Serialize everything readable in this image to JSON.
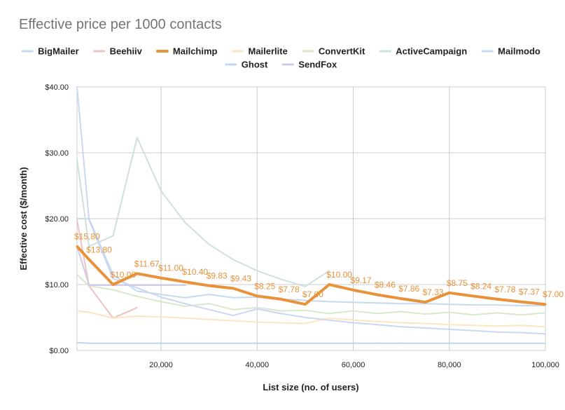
{
  "chart_data": {
    "type": "line",
    "title": "Effective price per 1000 contacts",
    "xlabel": "List size (no. of users)",
    "ylabel": "Effective cost ($/month)",
    "xlim": [
      2500,
      100000
    ],
    "ylim": [
      0,
      40
    ],
    "grid": true,
    "legend_position": "top",
    "x_ticks": [
      20000,
      40000,
      60000,
      80000,
      100000
    ],
    "x_tick_labels": [
      "20,000",
      "40,000",
      "60,000",
      "80,000",
      "100,000"
    ],
    "y_ticks": [
      0,
      10,
      20,
      30,
      40
    ],
    "y_tick_labels": [
      "$0.00",
      "$10.00",
      "$20.00",
      "$30.00",
      "$40.00"
    ],
    "highlight_series": "Mailchimp",
    "series": [
      {
        "name": "BigMailer",
        "color": "#c5d9ef",
        "x": [
          2500,
          5000,
          10000,
          15000,
          20000,
          25000,
          30000,
          35000,
          40000,
          45000,
          50000,
          55000,
          60000,
          65000,
          70000,
          75000,
          80000,
          85000,
          90000,
          95000,
          100000
        ],
        "y": [
          20,
          20,
          11.5,
          9,
          8.5,
          8,
          8.5,
          8,
          8.1,
          7.8,
          7.6,
          7.4,
          7.3,
          7.2,
          7.1,
          7.1,
          7,
          6.9,
          6.9,
          6.8,
          6.8
        ]
      },
      {
        "name": "Beehiiv",
        "color": "#efc3c3",
        "x": [
          2500,
          5000,
          10000,
          15000
        ],
        "y": [
          19.8,
          9.8,
          4.9,
          6.5
        ]
      },
      {
        "name": "Mailchimp",
        "color": "#e8923a",
        "x": [
          2500,
          5000,
          10000,
          15000,
          20000,
          25000,
          30000,
          35000,
          40000,
          45000,
          50000,
          55000,
          60000,
          65000,
          70000,
          75000,
          80000,
          85000,
          90000,
          95000,
          100000
        ],
        "y": [
          15.8,
          13.8,
          10,
          11.67,
          11,
          10.4,
          9.83,
          9.43,
          8.25,
          7.78,
          7,
          10,
          9.17,
          8.46,
          7.86,
          7.33,
          8.75,
          8.24,
          7.78,
          7.37,
          7
        ],
        "labels": [
          "$15.80",
          "$13.80",
          "$10.00",
          "$11.67",
          "$11.00",
          "$10.40",
          "$9.83",
          "$9.43",
          "$8.25",
          "$7.78",
          "$7.00",
          "$10.00",
          "$9.17",
          "$8.46",
          "$7.86",
          "$7.33",
          "$8.75",
          "$8.24",
          "$7.78",
          "$7.37",
          "$7.00"
        ]
      },
      {
        "name": "Mailerlite",
        "color": "#fbe6c2",
        "x": [
          2500,
          5000,
          10000,
          15000,
          20000,
          25000,
          30000,
          35000,
          40000,
          45000,
          50000,
          55000,
          60000,
          65000,
          70000,
          75000,
          80000,
          85000,
          90000,
          95000,
          100000
        ],
        "y": [
          6,
          5.8,
          4.9,
          5.2,
          5.1,
          4.9,
          4.7,
          4.5,
          4.3,
          4.2,
          4.1,
          4.9,
          4.6,
          4.4,
          4.2,
          4.1,
          3.9,
          3.8,
          3.7,
          3.8,
          3.6
        ]
      },
      {
        "name": "ConvertKit",
        "color": "#d7e8cc",
        "x": [
          2500,
          5000,
          10000,
          15000,
          20000,
          25000,
          30000,
          35000,
          40000,
          45000,
          50000,
          55000,
          60000,
          65000,
          70000,
          75000,
          80000,
          85000,
          90000,
          95000,
          100000
        ],
        "y": [
          11.5,
          9.8,
          9.2,
          8.2,
          7.4,
          6.7,
          7.1,
          6.2,
          6.5,
          6,
          6.1,
          5.6,
          6,
          5.6,
          5.9,
          5.5,
          5.8,
          5.4,
          5.7,
          5.4,
          5.7
        ]
      },
      {
        "name": "ActiveCampaign",
        "color": "#cfe0e0",
        "x": [
          2500,
          5000,
          10000,
          15000,
          20000,
          25000,
          30000,
          35000,
          40000,
          45000,
          50000,
          55000
        ],
        "y": [
          29,
          15.8,
          17.4,
          32.3,
          24.2,
          19.4,
          16.1,
          13.8,
          12.1,
          10.8,
          9.7,
          12.1
        ]
      },
      {
        "name": "Mailmodo",
        "color": "#c9d7f2",
        "x": [
          2500,
          5000,
          10000,
          15000,
          20000,
          25000,
          30000,
          35000,
          40000,
          45000,
          50000,
          55000,
          60000,
          65000,
          70000,
          75000,
          80000,
          85000,
          90000,
          95000,
          100000
        ],
        "y": [
          40,
          19.8,
          10.9,
          9.5,
          8.1,
          7.1,
          6.2,
          5.3,
          6.3,
          5.6,
          5,
          4.6,
          4.2,
          3.9,
          3.6,
          3.4,
          3.2,
          3,
          2.8,
          2.7,
          2.5
        ]
      },
      {
        "name": "Ghost",
        "color": "#bcd8ee",
        "x": [
          2500,
          5000,
          10000,
          15000,
          20000,
          25000,
          30000,
          35000,
          40000,
          45000,
          50000,
          55000,
          60000,
          65000,
          70000,
          75000,
          80000,
          85000,
          90000,
          95000,
          100000
        ],
        "y": [
          1.2,
          1.1,
          1.1,
          1.1,
          1.1,
          1.1,
          1.1,
          1.1,
          1.1,
          1.1,
          1.1,
          1.1,
          1.1,
          1.1,
          1.1,
          1.1,
          1.1,
          1.1,
          1.1,
          1.1,
          1.1
        ]
      },
      {
        "name": "SendFox",
        "color": "#cfc9e8",
        "x": [
          2500,
          5000,
          10000,
          15000,
          20000,
          25000
        ],
        "y": [
          15.8,
          9.9,
          9.9,
          9.9,
          9.9,
          9.9
        ]
      }
    ]
  },
  "colors": {
    "grid": "#cccccc",
    "axis": "#333333",
    "highlight_label": "#e8923a"
  }
}
